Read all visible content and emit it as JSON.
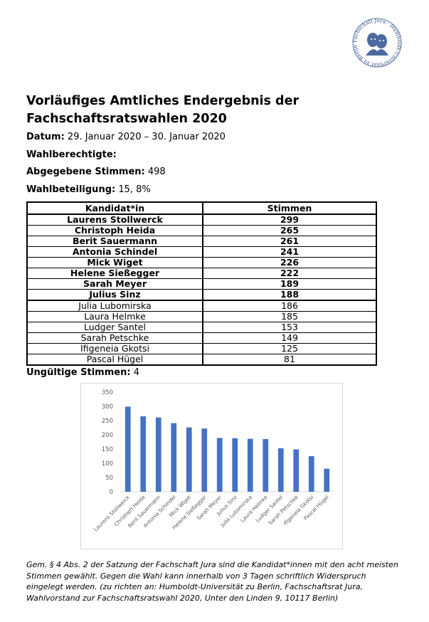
{
  "seal": {
    "text": "Fachschaft Jura · Humboldt-Universität zu Berlin ·"
  },
  "title": "Vorläufiges Amtliches Endergebnis der Fachschaftsratswahlen 2020",
  "meta": {
    "date_label": "Datum:",
    "date_value": "29. Januar 2020 – 30. Januar 2020",
    "eligible_label": "Wahlberechtigte:",
    "eligible_value": "",
    "votes_label": "Abgegebene Stimmen:",
    "votes_value": "498",
    "turnout_label": "Wahlbeteiligung:",
    "turnout_value": "15, 8%"
  },
  "table": {
    "headers": [
      "Kandidat*in",
      "Stimmen"
    ],
    "rows": [
      {
        "name": "Laurens Stollwerck",
        "votes": "299",
        "elected": true
      },
      {
        "name": "Christoph Heida",
        "votes": "265",
        "elected": true
      },
      {
        "name": "Berit Sauermann",
        "votes": "261",
        "elected": true
      },
      {
        "name": "Antonia Schindel",
        "votes": "241",
        "elected": true
      },
      {
        "name": "Mick Wiget",
        "votes": "226",
        "elected": true
      },
      {
        "name": "Helene Sießegger",
        "votes": "222",
        "elected": true
      },
      {
        "name": "Sarah Meyer",
        "votes": "189",
        "elected": true
      },
      {
        "name": "Julius Sinz",
        "votes": "188",
        "elected": true
      },
      {
        "name": "Julia Lubomirska",
        "votes": "186",
        "elected": false
      },
      {
        "name": "Laura Helmke",
        "votes": "185",
        "elected": false
      },
      {
        "name": "Ludger Santel",
        "votes": "153",
        "elected": false
      },
      {
        "name": "Sarah Petschke",
        "votes": "149",
        "elected": false
      },
      {
        "name": "Ifigeneia Gkotsi",
        "votes": "125",
        "elected": false
      },
      {
        "name": "Pascal Hügel",
        "votes": "81",
        "elected": false
      }
    ]
  },
  "invalid": {
    "label": "Ungültige Stimmen:",
    "value": "4"
  },
  "chart_data": {
    "type": "bar",
    "title": "",
    "xlabel": "",
    "ylabel": "",
    "categories": [
      "Laurens Stollwerck",
      "Christoph Heida",
      "Berit Sauermann",
      "Antonia Schindel",
      "Mick Wiget",
      "Helene Sießegger",
      "Sarah Meyer",
      "Julius Sinz",
      "Julia Lubomirska",
      "Laura Helmke",
      "Ludger Santel",
      "Sarah Petschke",
      "Ifigeneia Gkotsi",
      "Pascal Hügel"
    ],
    "values": [
      299,
      265,
      261,
      241,
      226,
      222,
      189,
      188,
      186,
      185,
      153,
      149,
      125,
      81
    ],
    "ylim": [
      0,
      350
    ],
    "yticks": [
      0,
      50,
      100,
      150,
      200,
      250,
      300,
      350
    ],
    "grid": false,
    "bar_color": "#4472c4"
  },
  "footnote": "Gem. § 4 Abs. 2 der Satzung der Fachschaft Jura sind die Kandidat*innen mit den acht meisten Stimmen gewählt. Gegen die Wahl kann innerhalb von 3 Tagen schriftlich Widerspruch eingelegt werden. (zu richten an: Humboldt-Universität zu Berlin, Fachschaftsrat Jura, Wahlvorstand zur Fachschaftsratswahl 2020, Unter den Linden 9, 10117 Berlin)"
}
